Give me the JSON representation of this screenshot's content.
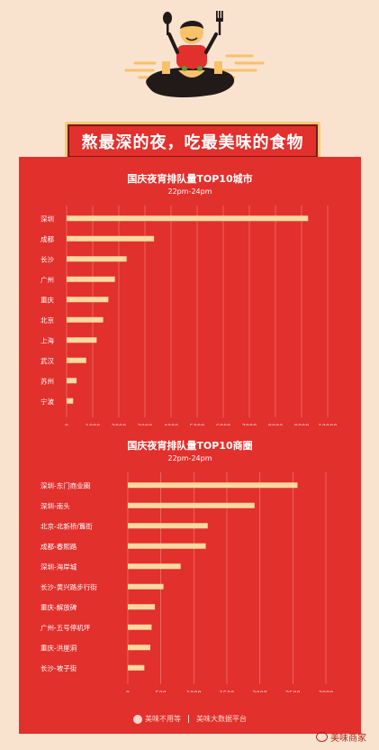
{
  "banner": {
    "headline": "熬最深的夜，吃最美味的食物"
  },
  "colors": {
    "page_bg": "#f9e3cf",
    "panel_bg": "#e2302c",
    "bar": "#fbd9a1",
    "grid": "#f18a7a",
    "text": "#ffffff"
  },
  "chart_data": [
    {
      "type": "bar",
      "orientation": "horizontal",
      "title": "国庆夜宵排队量TOP10城市",
      "subtitle": "22pm-24pm",
      "categories": [
        "深圳",
        "成都",
        "长沙",
        "广州",
        "重庆",
        "北京",
        "上海",
        "武汉",
        "苏州",
        "宁波"
      ],
      "values": [
        9250,
        3350,
        2300,
        1850,
        1600,
        1400,
        1150,
        750,
        380,
        250
      ],
      "xlim": [
        0,
        10000
      ],
      "xticks": [
        "0",
        "1000",
        "2000",
        "3000",
        "4000",
        "5000",
        "6000",
        "7000",
        "8000",
        "9000",
        "10000"
      ],
      "grid": true
    },
    {
      "type": "bar",
      "orientation": "horizontal",
      "title": "国庆夜宵排队量TOP10商圈",
      "subtitle": "22pm-24pm",
      "categories": [
        "深圳-东门商业圈",
        "深圳-南头",
        "北京-北新桥/簋街",
        "成都-春熙路",
        "深圳-海岸城",
        "长沙-黄兴路步行街",
        "重庆-解放碑",
        "广州-五号停机坪",
        "重庆-洪崖洞",
        "长沙-坡子街"
      ],
      "values": [
        2570,
        1920,
        1210,
        1180,
        800,
        540,
        410,
        360,
        340,
        250
      ],
      "xlim": [
        0,
        3000
      ],
      "xticks": [
        "0",
        "500",
        "1000",
        "1500",
        "2000",
        "2500",
        "3000"
      ],
      "grid": true
    }
  ],
  "footer": {
    "brand": "美味不用等",
    "platform": "美味大数据平台"
  },
  "watermark": "美味商家"
}
